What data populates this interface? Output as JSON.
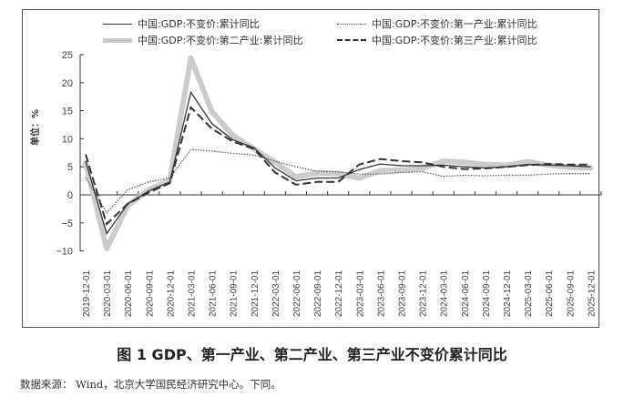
{
  "legend": [
    {
      "label": "中国:GDP:不变价:累计同比",
      "style": "solid"
    },
    {
      "label": "中国:GDP:不变价:第一产业:累计同比",
      "style": "dotted"
    },
    {
      "label": "中国:GDP:不变价:第二产业:累计同比",
      "style": "thick-gray"
    },
    {
      "label": "中国:GDP:不变价:第三产业:累计同比",
      "style": "dashed"
    }
  ],
  "y_axis_label": "单位：%",
  "caption": {
    "title": "图 1   GDP、第一产业、第二产业、第三产业不变价累计同比",
    "source": "数据来源： Wind，北京大学国民经济研究中心。下同。"
  },
  "chart_data": {
    "type": "line",
    "title": "图 1 GDP、第一产业、第二产业、第三产业不变价累计同比",
    "xlabel": "",
    "ylabel": "单位：%",
    "ylim": [
      -10,
      25
    ],
    "yticks": [
      -10,
      -5,
      0,
      5,
      10,
      15,
      20,
      25
    ],
    "grid": false,
    "legend_position": "top",
    "categories": [
      "2019-12-01",
      "2020-03-01",
      "2020-06-01",
      "2020-09-01",
      "2020-12-01",
      "2021-03-01",
      "2021-06-01",
      "2021-09-01",
      "2021-12-01",
      "2022-03-01",
      "2022-06-01",
      "2022-09-01",
      "2022-12-01",
      "2023-03-01",
      "2023-06-01",
      "2023-09-01",
      "2023-12-01",
      "2024-03-01",
      "2024-06-01",
      "2024-09-01",
      "2024-12-01",
      "2025-03-01",
      "2025-06-01",
      "2025-09-01",
      "2025-12-01"
    ],
    "series": [
      {
        "name": "中国:GDP:不变价:累计同比",
        "style": "solid",
        "color": "#333333",
        "values": [
          6.0,
          -6.9,
          -1.6,
          0.7,
          2.3,
          18.3,
          12.7,
          9.8,
          8.4,
          4.8,
          2.5,
          3.0,
          3.0,
          4.5,
          5.5,
          5.2,
          5.2,
          5.3,
          5.0,
          4.8,
          5.0,
          5.4,
          5.3,
          5.2,
          5.0
        ]
      },
      {
        "name": "中国:GDP:不变价:第一产业:累计同比",
        "style": "dotted",
        "color": "#555555",
        "values": [
          3.1,
          -3.2,
          0.9,
          2.3,
          3.0,
          8.1,
          7.8,
          7.4,
          7.1,
          6.0,
          5.0,
          4.2,
          4.1,
          3.7,
          3.7,
          4.0,
          4.1,
          3.3,
          3.5,
          3.4,
          3.5,
          3.5,
          3.7,
          3.8,
          3.8
        ]
      },
      {
        "name": "中国:GDP:不变价:第二产业:累计同比",
        "style": "thick-gray",
        "color": "#c8c8c8",
        "values": [
          5.7,
          -9.6,
          -1.9,
          0.9,
          2.6,
          24.4,
          14.8,
          10.6,
          8.2,
          5.8,
          3.2,
          3.9,
          3.8,
          3.0,
          4.3,
          4.4,
          4.7,
          6.0,
          5.8,
          5.4,
          5.3,
          5.9,
          5.3,
          4.9,
          4.8
        ]
      },
      {
        "name": "中国:GDP:不变价:第三产业:累计同比",
        "style": "dashed",
        "color": "#333333",
        "values": [
          7.2,
          -5.2,
          -1.6,
          0.4,
          2.1,
          15.6,
          11.8,
          9.5,
          8.2,
          4.0,
          1.8,
          2.3,
          2.3,
          5.4,
          6.4,
          6.0,
          5.8,
          5.0,
          4.6,
          4.7,
          5.0,
          5.3,
          5.5,
          5.4,
          5.4
        ]
      }
    ]
  }
}
